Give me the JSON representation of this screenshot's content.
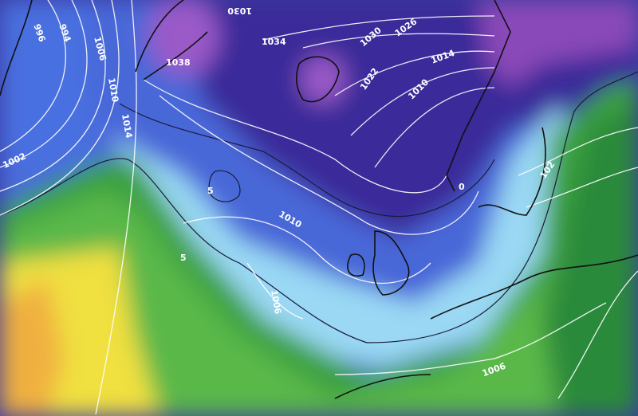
{
  "map": {
    "colors": {
      "deep_purple": "#3a2a9a",
      "purple_high": "#9a5ac8",
      "blue": "#4a68d8",
      "light_blue": "#8ad0f0",
      "cyan": "#c0f0f4",
      "green_dark": "#2a8a3a",
      "green": "#5ab848",
      "yellow_green": "#a8d040",
      "yellow": "#f0e040",
      "orange": "#f0b040"
    },
    "isobar_labels": [
      {
        "text": "996"
      },
      {
        "text": "994"
      },
      {
        "text": "1006"
      },
      {
        "text": "1010"
      },
      {
        "text": "1014"
      },
      {
        "text": "1002"
      },
      {
        "text": "1038"
      },
      {
        "text": "1034"
      },
      {
        "text": "1030"
      },
      {
        "text": "1030"
      },
      {
        "text": "1026"
      },
      {
        "text": "1022"
      },
      {
        "text": "1014"
      },
      {
        "text": "1010"
      },
      {
        "text": "0"
      },
      {
        "text": "102"
      },
      {
        "text": "5"
      },
      {
        "text": "5"
      },
      {
        "text": "1010"
      },
      {
        "text": "1006"
      },
      {
        "text": "1006"
      }
    ]
  }
}
